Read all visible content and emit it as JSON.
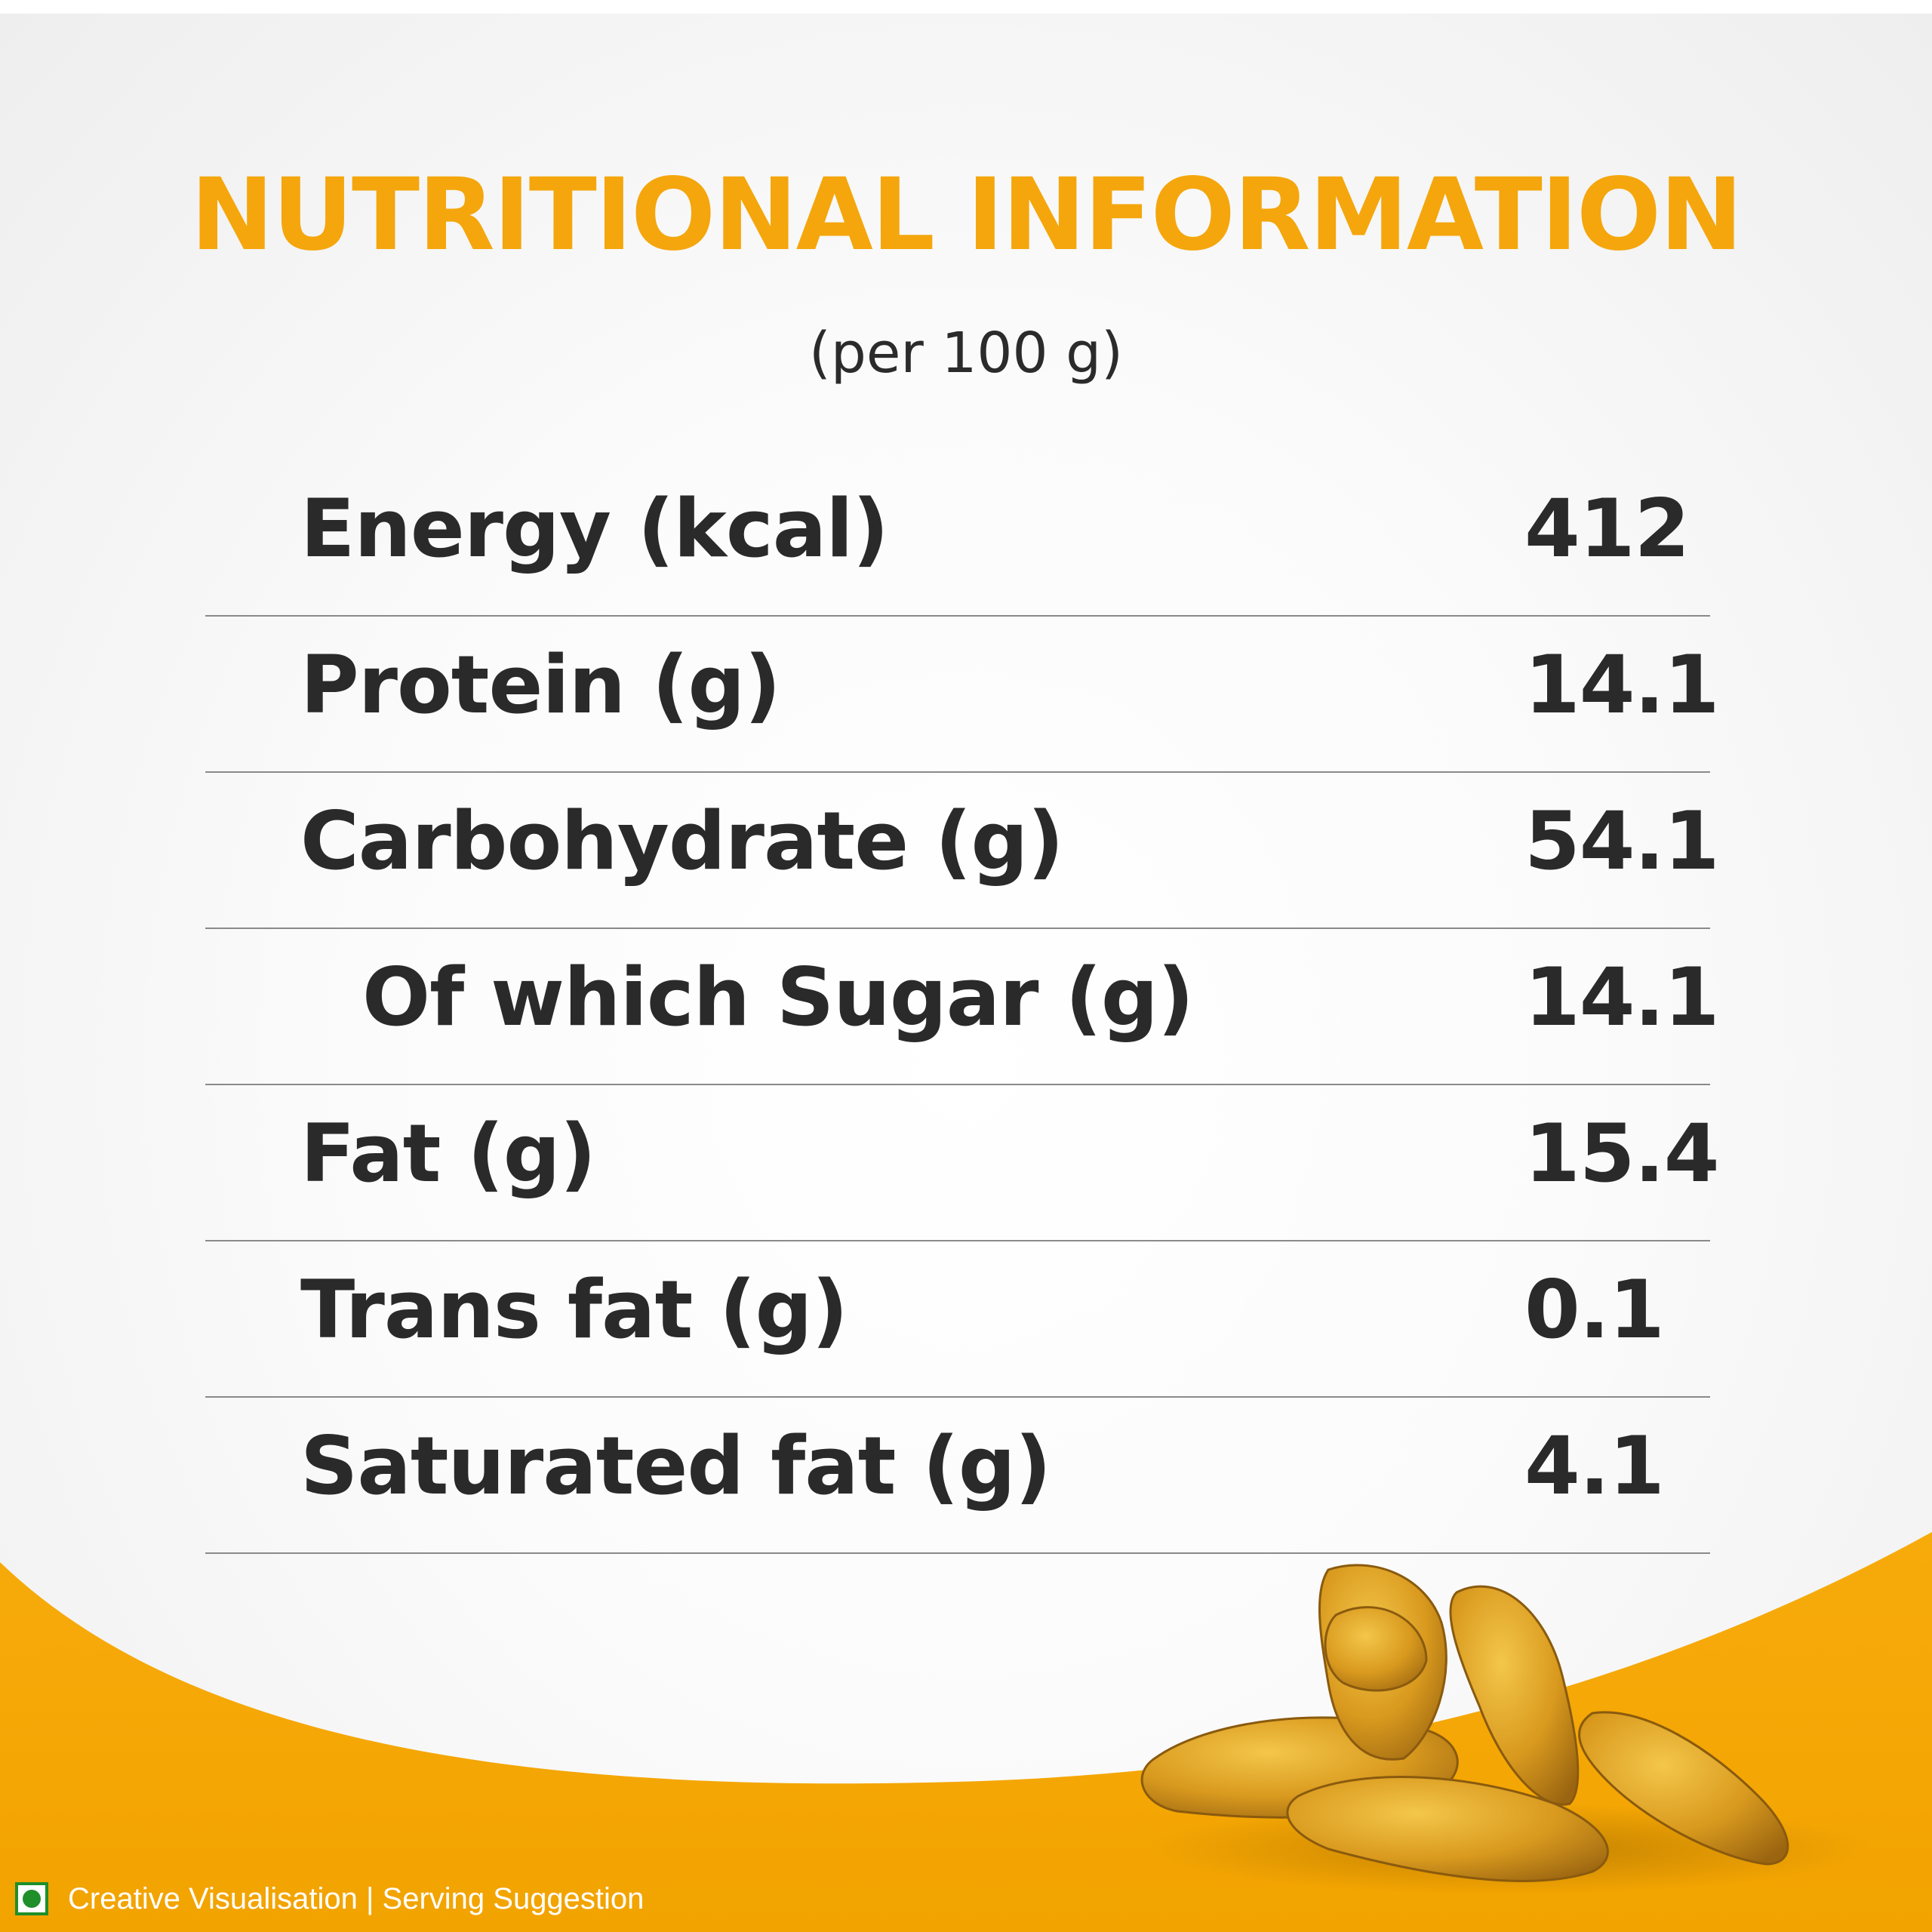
{
  "title": "NUTRITIONAL INFORMATION",
  "subtitle": "(per 100 g)",
  "nutrition_rows": [
    {
      "label": "Energy (kcal)",
      "value": "412"
    },
    {
      "label": "Protein (g)",
      "value": "14.1"
    },
    {
      "label": "Carbohydrate (g)",
      "value": "54.1"
    },
    {
      "label": "Of which Sugar (g)",
      "value": "14.1"
    },
    {
      "label": "Fat (g)",
      "value": "15.4"
    },
    {
      "label": "Trans fat (g)",
      "value": "0.1"
    },
    {
      "label": "Saturated fat (g)",
      "value": "4.1"
    }
  ],
  "footer": {
    "veg_mark_icon": "veg-symbol-icon",
    "text": "Creative Visualisation | Serving Suggestion"
  },
  "colors": {
    "accent": "#f4a60c",
    "text": "#2a2a2a",
    "veg_green": "#1f8f2a"
  },
  "decoration": {
    "image": "turmeric-roots-image"
  }
}
